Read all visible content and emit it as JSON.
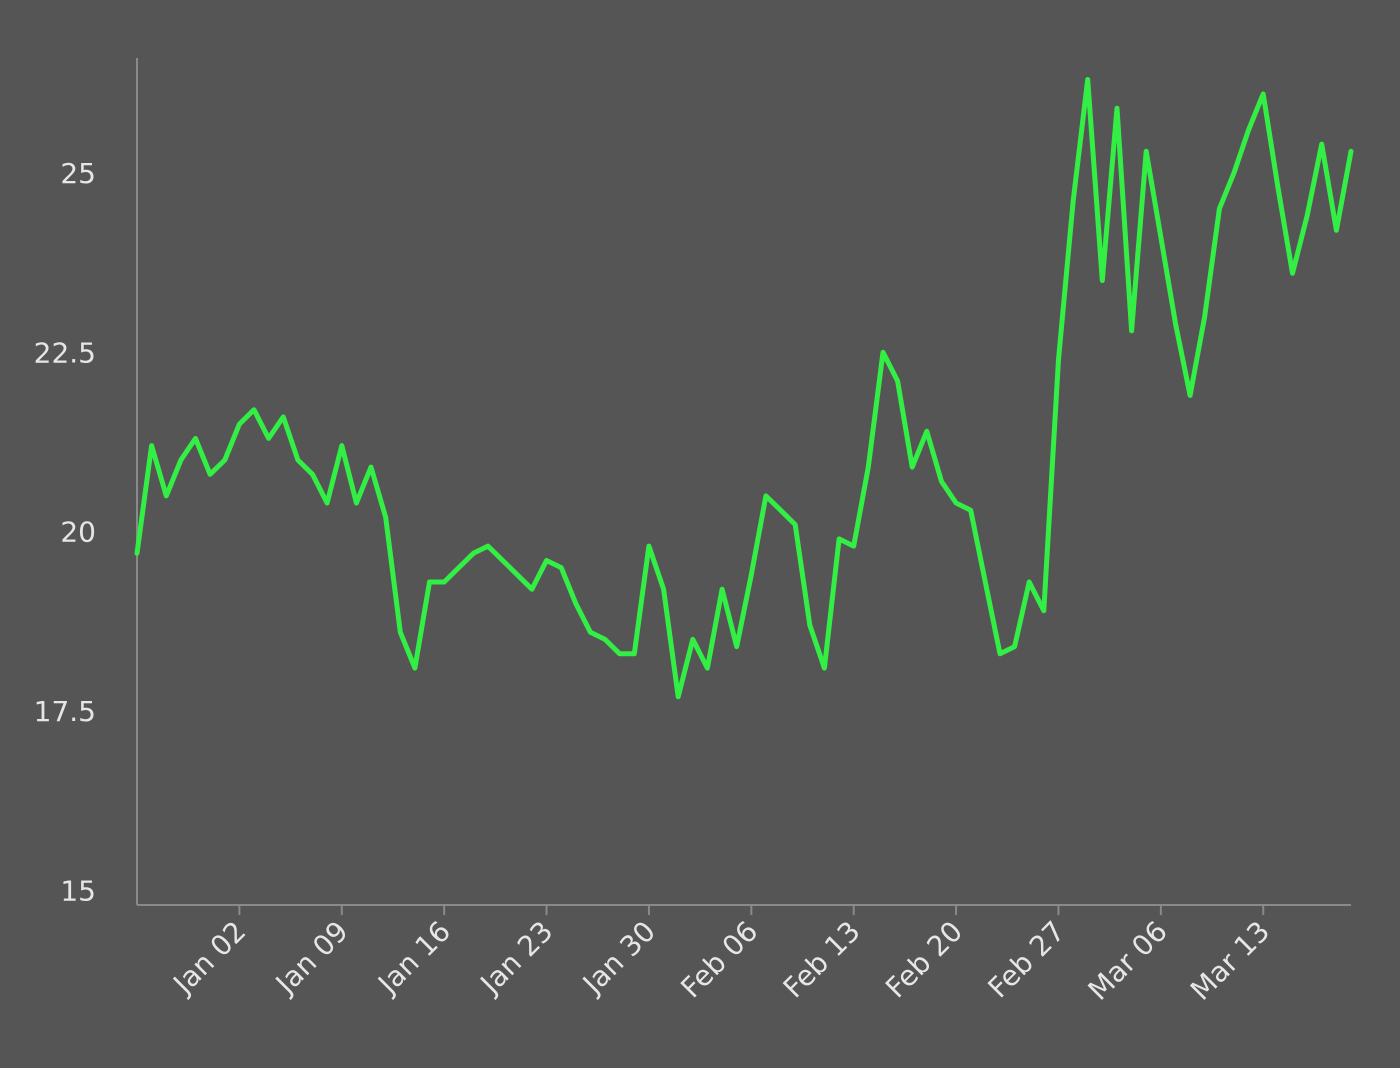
{
  "chart_data": {
    "type": "line",
    "title": "",
    "xlabel": "",
    "ylabel": "",
    "ylim": [
      14.8,
      26.6
    ],
    "y_ticks": [
      15,
      17.5,
      20,
      22.5,
      25
    ],
    "y_tick_labels": [
      "15",
      "17.5",
      "20",
      "22.5",
      "25"
    ],
    "x_ticks": [
      "2023-01-02",
      "2023-01-09",
      "2023-01-16",
      "2023-01-23",
      "2023-01-30",
      "2023-02-06",
      "2023-02-13",
      "2023-02-20",
      "2023-02-27",
      "2023-03-06",
      "2023-03-13"
    ],
    "x_tick_labels": [
      "Jan 02",
      "Jan 09",
      "Jan 16",
      "Jan 23",
      "Jan 30",
      "Feb 06",
      "Feb 13",
      "Feb 20",
      "Feb 27",
      "Mar 06",
      "Mar 13"
    ],
    "xlim": [
      "2022-12-26",
      "2023-03-19"
    ],
    "grid": false,
    "legend": "none",
    "colors": {
      "background": "#555555",
      "line": "#33ee44",
      "axis": "#8a8a8a",
      "text": "#e6e6e6"
    },
    "series": [
      {
        "x": [
          "2022-12-26",
          "2022-12-27",
          "2022-12-28",
          "2022-12-29",
          "2022-12-30",
          "2022-12-31",
          "2023-01-01",
          "2023-01-02",
          "2023-01-03",
          "2023-01-04",
          "2023-01-05",
          "2023-01-06",
          "2023-01-07",
          "2023-01-08",
          "2023-01-09",
          "2023-01-10",
          "2023-01-11",
          "2023-01-12",
          "2023-01-13",
          "2023-01-14",
          "2023-01-15",
          "2023-01-16",
          "2023-01-17",
          "2023-01-18",
          "2023-01-19",
          "2023-01-20",
          "2023-01-21",
          "2023-01-22",
          "2023-01-23",
          "2023-01-24",
          "2023-01-25",
          "2023-01-26",
          "2023-01-27",
          "2023-01-28",
          "2023-01-29",
          "2023-01-30",
          "2023-01-31",
          "2023-02-01",
          "2023-02-02",
          "2023-02-03",
          "2023-02-04",
          "2023-02-05",
          "2023-02-06",
          "2023-02-07",
          "2023-02-08",
          "2023-02-09",
          "2023-02-10",
          "2023-02-11",
          "2023-02-12",
          "2023-02-13",
          "2023-02-14",
          "2023-02-15",
          "2023-02-16",
          "2023-02-17",
          "2023-02-18",
          "2023-02-19",
          "2023-02-20",
          "2023-02-21",
          "2023-02-22",
          "2023-02-23",
          "2023-02-24",
          "2023-02-25",
          "2023-02-26",
          "2023-02-27",
          "2023-02-28",
          "2023-03-01",
          "2023-03-02",
          "2023-03-03",
          "2023-03-04",
          "2023-03-05",
          "2023-03-06",
          "2023-03-07",
          "2023-03-08",
          "2023-03-09",
          "2023-03-10",
          "2023-03-11",
          "2023-03-12",
          "2023-03-13",
          "2023-03-14",
          "2023-03-15",
          "2023-03-16",
          "2023-03-17",
          "2023-03-18",
          "2023-03-19"
        ],
        "values": [
          19.7,
          21.2,
          20.5,
          21.0,
          21.3,
          20.8,
          21.0,
          21.5,
          21.7,
          21.3,
          21.6,
          21.0,
          20.8,
          20.4,
          21.2,
          20.4,
          20.9,
          20.2,
          18.6,
          18.1,
          19.3,
          19.3,
          19.5,
          19.7,
          19.8,
          19.6,
          19.4,
          19.2,
          19.6,
          19.5,
          19.0,
          18.6,
          18.5,
          18.3,
          18.3,
          19.8,
          19.2,
          17.7,
          18.5,
          18.1,
          19.2,
          18.4,
          19.4,
          20.5,
          20.3,
          20.1,
          18.7,
          18.1,
          19.9,
          19.8,
          20.9,
          22.5,
          22.1,
          20.9,
          21.4,
          20.7,
          20.4,
          20.3,
          19.3,
          18.3,
          18.4,
          19.3,
          18.9,
          22.4,
          24.6,
          26.3,
          23.5,
          25.9,
          22.8,
          25.3,
          24.1,
          22.9,
          21.9,
          23.0,
          24.5,
          25.0,
          25.6,
          26.1,
          24.8,
          23.6,
          24.4,
          25.4,
          24.2,
          25.3
        ]
      }
    ]
  }
}
